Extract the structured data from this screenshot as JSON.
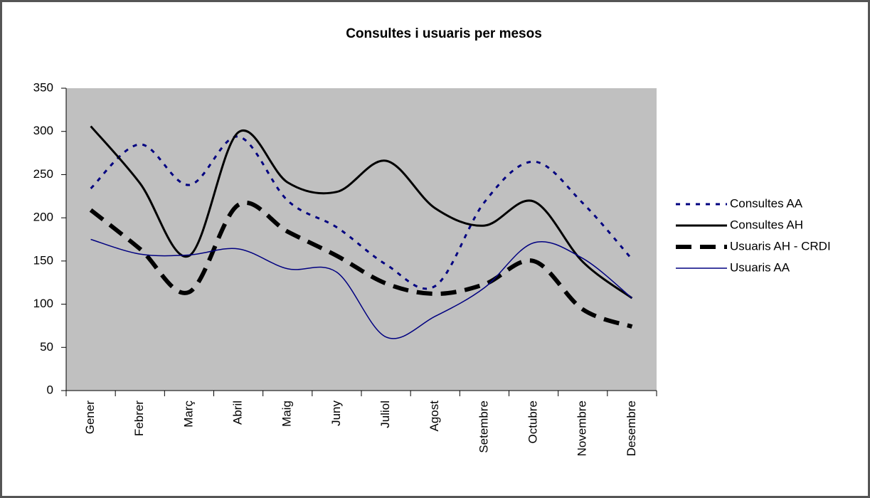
{
  "chart_data": {
    "type": "line",
    "title": "Consultes i usuaris per mesos",
    "categories": [
      "Gener",
      "Febrer",
      "Març",
      "Abril",
      "Maig",
      "Juny",
      "Juliol",
      "Agost",
      "Setembre",
      "Octubre",
      "Novembre",
      "Desembre"
    ],
    "series": [
      {
        "name": "Consultes AA",
        "color": "#000080",
        "line_style": "dotted",
        "line_width": 3,
        "values": [
          234,
          285,
          238,
          294,
          220,
          189,
          146,
          121,
          218,
          265,
          217,
          152
        ]
      },
      {
        "name": "Consultes AH",
        "color": "#000000",
        "line_style": "solid",
        "line_width": 3,
        "values": [
          306,
          240,
          156,
          299,
          241,
          230,
          266,
          211,
          191,
          219,
          149,
          107
        ]
      },
      {
        "name": "Usuaris AH - CRDI",
        "color": "#000000",
        "line_style": "dashed",
        "line_width": 6,
        "values": [
          209,
          164,
          114,
          215,
          184,
          156,
          124,
          112,
          123,
          150,
          94,
          74
        ]
      },
      {
        "name": "Usuaris AA",
        "color": "#000080",
        "line_style": "solid",
        "line_width": 1.5,
        "values": [
          175,
          158,
          157,
          164,
          141,
          137,
          62,
          86,
          119,
          171,
          153,
          107
        ]
      }
    ],
    "ylim": [
      0,
      350
    ],
    "yticks": [
      0,
      50,
      100,
      150,
      200,
      250,
      300,
      350
    ],
    "plot_background": "#c0c0c0",
    "legend": "right",
    "smooth": true
  }
}
